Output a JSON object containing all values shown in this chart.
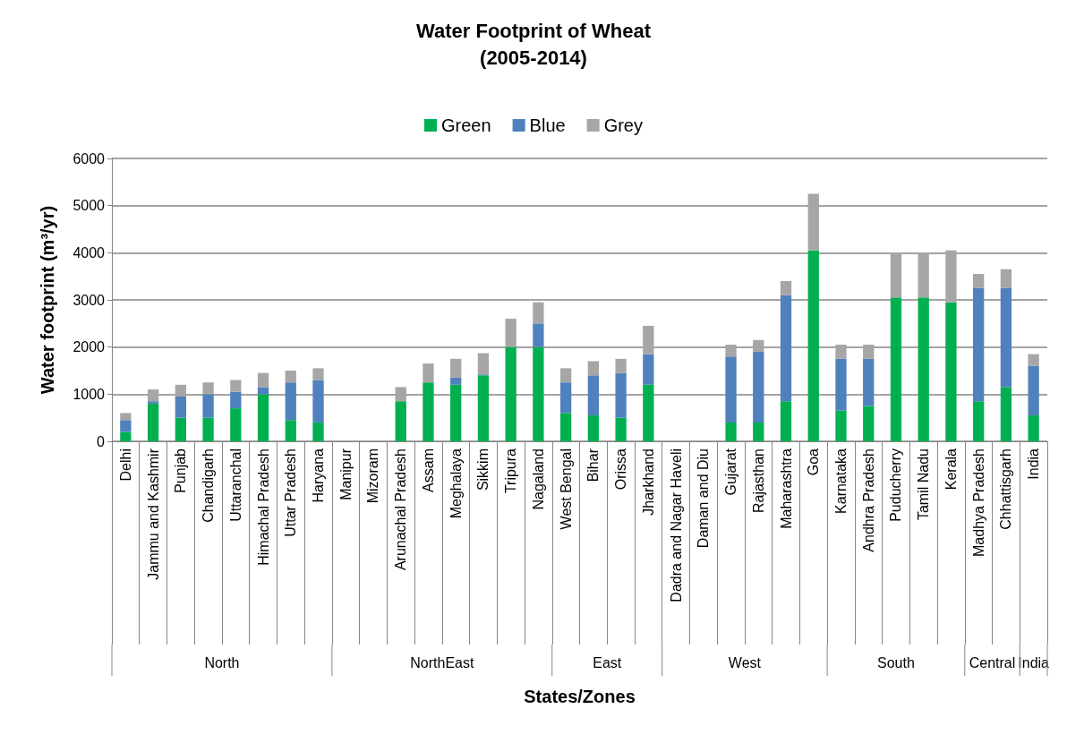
{
  "chart_data": {
    "type": "bar",
    "title": "Water Footprint of Wheat",
    "subtitle": "(2005-2014)",
    "xlabel": "States/Zones",
    "ylabel": "Water footprint (m³/yr)",
    "categories": [
      "Delhi",
      "Jammu and Kashmir",
      "Punjab",
      "Chandigarh",
      "Uttaranchal",
      "Himachal Pradesh",
      "Uttar Pradesh",
      "Haryana",
      "Manipur",
      "Mizoram",
      "Arunachal Pradesh",
      "Assam",
      "Meghalaya",
      "Sikkim",
      "Tripura",
      "Nagaland",
      "West Bengal",
      "Bihar",
      "Orissa",
      "Jharkhand",
      "Dadra and Nagar Haveli",
      "Daman and Diu",
      "Gujarat",
      "Rajasthan",
      "Maharashtra",
      "Goa",
      "Karnataka",
      "Andhra Pradesh",
      "Puducherry",
      "Tamil Nadu",
      "Kerala",
      "Madhya Pradesh",
      "Chhattisgarh",
      "India"
    ],
    "series": [
      {
        "name": "Green",
        "color": "#00b050",
        "values": [
          200,
          800,
          500,
          500,
          700,
          1000,
          450,
          400,
          null,
          null,
          850,
          1250,
          1200,
          1400,
          2000,
          2000,
          600,
          550,
          500,
          1200,
          null,
          null,
          400,
          400,
          850,
          4050,
          650,
          750,
          3050,
          3050,
          2950,
          850,
          1150,
          550
        ]
      },
      {
        "name": "Blue",
        "color": "#4f81bd",
        "values": [
          250,
          50,
          450,
          500,
          350,
          150,
          800,
          900,
          null,
          null,
          0,
          0,
          150,
          20,
          0,
          500,
          650,
          850,
          950,
          650,
          null,
          null,
          1400,
          1500,
          2250,
          0,
          1100,
          1000,
          0,
          0,
          0,
          2400,
          2100,
          1050
        ]
      },
      {
        "name": "Grey",
        "color": "#a6a6a6",
        "values": [
          150,
          250,
          250,
          250,
          250,
          300,
          250,
          250,
          null,
          null,
          300,
          400,
          400,
          450,
          600,
          450,
          300,
          300,
          300,
          600,
          null,
          null,
          250,
          250,
          300,
          1200,
          300,
          300,
          950,
          950,
          1100,
          300,
          400,
          250
        ]
      }
    ],
    "stacked": true,
    "ylim": [
      0,
      6000
    ],
    "yticks": [
      0,
      1000,
      2000,
      3000,
      4000,
      5000,
      6000
    ],
    "grid": "y",
    "legend": "top",
    "annotations": [
      "North",
      "NorthEast",
      "East",
      "West",
      "South",
      "Central",
      "India"
    ]
  }
}
